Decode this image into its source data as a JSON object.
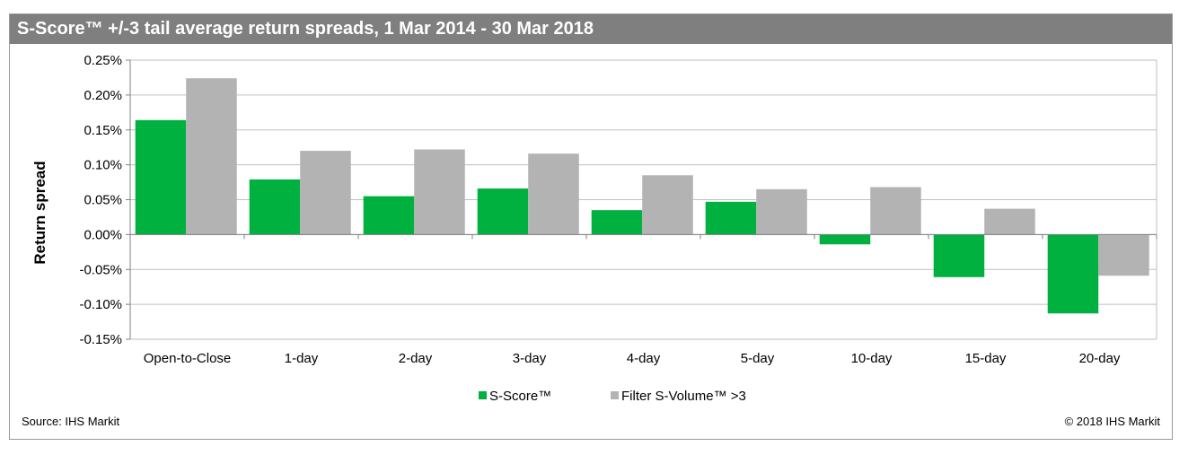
{
  "title": "S-Score™ +/-3 tail average return spreads, 1 Mar 2014 - 30 Mar 2018",
  "footer": {
    "source": "Source: IHS Markit",
    "copyright": "© 2018 IHS Markit"
  },
  "colors": {
    "title_bar": "#7f7f7f",
    "series_green": "#00b140",
    "series_gray": "#b3b3b3"
  },
  "chart_data": {
    "type": "bar",
    "ylabel": "Return spread",
    "xlabel": "",
    "ylim": [
      -0.15,
      0.25
    ],
    "y_unit": "%",
    "y_ticks": [
      "0.25%",
      "0.20%",
      "0.15%",
      "0.10%",
      "0.05%",
      "0.00%",
      "-0.05%",
      "-0.10%",
      "-0.15%"
    ],
    "y_tick_values": [
      0.25,
      0.2,
      0.15,
      0.1,
      0.05,
      0.0,
      -0.05,
      -0.1,
      -0.15
    ],
    "grid": true,
    "legend_position": "bottom-center",
    "categories": [
      "Open-to-Close",
      "1-day",
      "2-day",
      "3-day",
      "4-day",
      "5-day",
      "10-day",
      "15-day",
      "20-day"
    ],
    "series": [
      {
        "name": "S-Score™",
        "color": "#00b140",
        "values": [
          0.164,
          0.079,
          0.055,
          0.066,
          0.035,
          0.047,
          -0.014,
          -0.061,
          -0.113
        ]
      },
      {
        "name": "Filter S-Volume™ >3",
        "color": "#b3b3b3",
        "values": [
          0.224,
          0.12,
          0.122,
          0.116,
          0.085,
          0.065,
          0.068,
          0.037,
          -0.059
        ]
      }
    ]
  }
}
